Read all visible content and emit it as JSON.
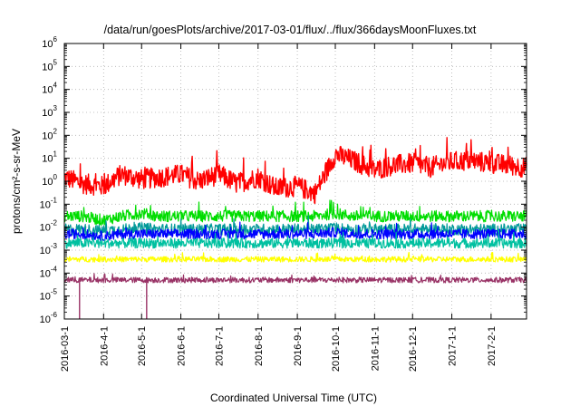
{
  "chart_data": {
    "type": "line",
    "title": "/data/run/goesPlots/archive/2017-03-01/flux/../flux/366daysMoonFluxes.txt",
    "xlabel": "Coordinated Universal Time (UTC)",
    "ylabel": "protons/cm²-s-sr-MeV",
    "y_scale": "log",
    "grid": true,
    "legend": "none",
    "ylim": [
      1e-06,
      1000000.0
    ],
    "xlim": [
      "2016-03-01",
      "2017-03-01"
    ],
    "x_ticks": [
      "2016-03-1",
      "2016-4-1",
      "2016-5-1",
      "2016-6-1",
      "2016-7-1",
      "2016-8-1",
      "2016-9-1",
      "2016-10-1",
      "2016-11-1",
      "2016-12-1",
      "2017-1-1",
      "2017-2-1"
    ],
    "x_tick_dates": [
      "2016-03-01",
      "2016-04-01",
      "2016-05-01",
      "2016-06-01",
      "2016-07-01",
      "2016-08-01",
      "2016-09-01",
      "2016-10-01",
      "2016-11-01",
      "2016-12-01",
      "2017-01-01",
      "2017-02-01"
    ],
    "y_ticks": [
      {
        "base": "10",
        "exp": "-6",
        "value": 1e-06
      },
      {
        "base": "10",
        "exp": "-5",
        "value": 1e-05
      },
      {
        "base": "10",
        "exp": "-4",
        "value": 0.0001
      },
      {
        "base": "10",
        "exp": "-3",
        "value": 0.001
      },
      {
        "base": "10",
        "exp": "-2",
        "value": 0.01
      },
      {
        "base": "10",
        "exp": "-1",
        "value": 0.1
      },
      {
        "base": "10",
        "exp": "0",
        "value": 1
      },
      {
        "base": "10",
        "exp": "1",
        "value": 10
      },
      {
        "base": "10",
        "exp": "2",
        "value": 100
      },
      {
        "base": "10",
        "exp": "3",
        "value": 1000
      },
      {
        "base": "10",
        "exp": "4",
        "value": 10000
      },
      {
        "base": "10",
        "exp": "5",
        "value": 100000
      },
      {
        "base": "10",
        "exp": "6",
        "value": 1000000
      }
    ],
    "x": [
      "2016-03-01",
      "2016-03-15",
      "2016-04-01",
      "2016-04-15",
      "2016-05-01",
      "2016-05-15",
      "2016-06-01",
      "2016-06-15",
      "2016-07-01",
      "2016-07-15",
      "2016-08-01",
      "2016-08-15",
      "2016-09-01",
      "2016-09-15",
      "2016-10-01",
      "2016-10-15",
      "2016-11-01",
      "2016-11-15",
      "2016-12-01",
      "2016-12-15",
      "2017-01-01",
      "2017-01-15",
      "2017-02-01",
      "2017-02-15",
      "2017-02-28"
    ],
    "series": [
      {
        "color": "#ff0000",
        "values": [
          1.5,
          0.8,
          0.6,
          2,
          1.2,
          1.5,
          2,
          1,
          2,
          0.8,
          1.5,
          0.5,
          0.6,
          0.3,
          15,
          8,
          3,
          5,
          6,
          4,
          7,
          8,
          6,
          5,
          4
        ]
      },
      {
        "color": "#00dd00",
        "values": [
          0.03,
          0.03,
          0.02,
          0.03,
          0.04,
          0.03,
          0.03,
          0.03,
          0.03,
          0.03,
          0.03,
          0.03,
          0.03,
          0.03,
          0.04,
          0.03,
          0.03,
          0.03,
          0.03,
          0.03,
          0.03,
          0.03,
          0.03,
          0.03,
          0.03
        ]
      },
      {
        "color": "#009999",
        "values": [
          0.008,
          0.008,
          0.007,
          0.008,
          0.009,
          0.008,
          0.008,
          0.008,
          0.008,
          0.008,
          0.008,
          0.008,
          0.008,
          0.008,
          0.009,
          0.008,
          0.008,
          0.008,
          0.008,
          0.008,
          0.008,
          0.008,
          0.008,
          0.008,
          0.008
        ]
      },
      {
        "color": "#0000ff",
        "values": [
          0.005,
          0.005,
          0.004,
          0.005,
          0.005,
          0.005,
          0.005,
          0.005,
          0.005,
          0.005,
          0.005,
          0.005,
          0.005,
          0.005,
          0.006,
          0.005,
          0.005,
          0.005,
          0.005,
          0.005,
          0.005,
          0.005,
          0.005,
          0.005,
          0.005
        ]
      },
      {
        "color": "#00c0a0",
        "values": [
          0.002,
          0.002,
          0.002,
          0.002,
          0.002,
          0.002,
          0.002,
          0.002,
          0.002,
          0.002,
          0.002,
          0.002,
          0.002,
          0.002,
          0.002,
          0.002,
          0.002,
          0.002,
          0.002,
          0.002,
          0.002,
          0.002,
          0.002,
          0.002,
          0.002
        ]
      },
      {
        "color": "#ffff00",
        "values": [
          0.0004,
          0.0004,
          0.0004,
          0.0004,
          0.0004,
          0.0004,
          0.0004,
          0.0004,
          0.0004,
          0.0004,
          0.0004,
          0.0004,
          0.0004,
          0.0004,
          0.0004,
          0.0004,
          0.0004,
          0.0004,
          0.0004,
          0.0004,
          0.0004,
          0.0004,
          0.0004,
          0.0004,
          0.0004
        ]
      },
      {
        "color": "#993366",
        "values": [
          5e-05,
          5e-05,
          5e-05,
          5e-05,
          5e-05,
          5e-05,
          5e-05,
          5e-05,
          5e-05,
          5e-05,
          5e-05,
          5e-05,
          5e-05,
          5e-05,
          5e-05,
          5e-05,
          5e-05,
          5e-05,
          5e-05,
          5e-05,
          5e-05,
          5e-05,
          5e-05,
          5e-05,
          5e-05
        ]
      }
    ],
    "dropouts": [
      {
        "color": "#993366",
        "x": "2016-03-13",
        "value": 1e-06
      },
      {
        "color": "#993366",
        "x": "2016-05-05",
        "value": 1e-06
      }
    ]
  }
}
